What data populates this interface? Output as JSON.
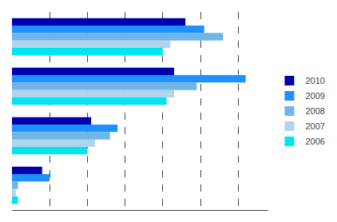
{
  "chart_data": {
    "type": "bar",
    "orientation": "horizontal",
    "categories": [
      null,
      null,
      null,
      null
    ],
    "series": [
      {
        "name": "2010",
        "color": "#0000AA",
        "values": [
          230,
          215,
          105,
          40
        ]
      },
      {
        "name": "2009",
        "color": "#1E90FF",
        "values": [
          255,
          310,
          140,
          50
        ]
      },
      {
        "name": "2008",
        "color": "#6EB5E8",
        "values": [
          280,
          245,
          130,
          8
        ]
      },
      {
        "name": "2007",
        "color": "#B0D4EE",
        "values": [
          210,
          215,
          110,
          5
        ]
      },
      {
        "name": "2006",
        "color": "#00E5EE",
        "values": [
          200,
          205,
          100,
          8
        ]
      }
    ],
    "xlim": [
      0,
      340
    ],
    "xticks": [
      50,
      100,
      150,
      200,
      250,
      300
    ],
    "grid": true,
    "tick_labels": false,
    "legend": "right"
  }
}
